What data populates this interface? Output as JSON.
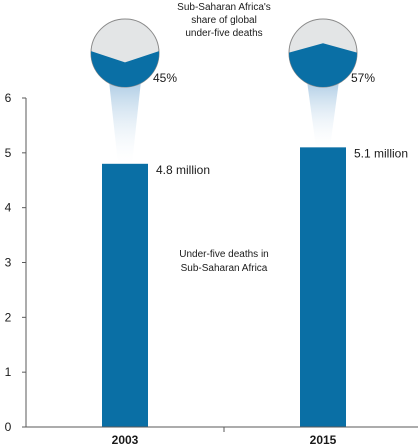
{
  "chart_data": {
    "type": "bar",
    "categories": [
      "2003",
      "2015"
    ],
    "values": [
      4.8,
      5.1
    ],
    "value_labels": [
      "4.8 million",
      "5.1 million"
    ],
    "ylim": [
      0,
      6
    ],
    "yticks": [
      "0",
      "1",
      "2",
      "3",
      "4",
      "5",
      "6"
    ],
    "bar_annotation": [
      "Under-five deaths in",
      "Sub-Saharan Africa"
    ],
    "share": {
      "title": [
        "Sub-Saharan Africa's",
        "share of global",
        "under-five deaths"
      ],
      "values": [
        45,
        57
      ],
      "labels": [
        "45%",
        "57%"
      ]
    },
    "grid": false,
    "legend": "none"
  },
  "colors": {
    "bar": "#0a6fa5",
    "axis": "#5a5a5a",
    "pie_empty": "#e3e5e6",
    "pie_outline": "#8a8a8a",
    "beam": "#bcd6ea"
  }
}
